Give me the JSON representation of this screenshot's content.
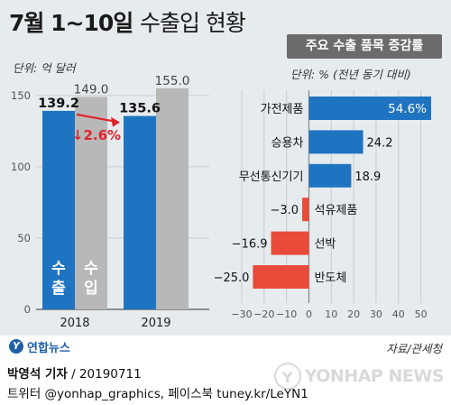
{
  "header": {
    "title_main": "7월 1~10일",
    "title_sub": "수출입 현황"
  },
  "left_chart": {
    "unit_label": "단위: 억 달러",
    "change_label": "↓2.6%",
    "export_label": "수출",
    "import_label": "수입"
  },
  "right_chart": {
    "header": "주요 수출 품목 증감률",
    "unit_label": "단위: % (전년 동기 대비)"
  },
  "footer": {
    "logo_text": "연합뉴스",
    "source": "자료/관세청",
    "byline_name": "박영석 기자",
    "byline_date": "20190711",
    "social": "트위터 @yonhap_graphics, 페이스북 tuney.kr/LeYN1",
    "watermark_text": "YONHAP NEWS"
  },
  "colors": {
    "export": "#1f74c1",
    "import": "#b8b8b8",
    "positive": "#1f74c1",
    "negative": "#e84b3a",
    "arrow": "#e0242b",
    "highlight_label": "#ffffff"
  },
  "chart_data": [
    {
      "type": "bar",
      "categories": [
        "2018",
        "2019"
      ],
      "series": [
        {
          "name": "수출",
          "values": [
            139.2,
            135.6
          ]
        },
        {
          "name": "수입",
          "values": [
            149.0,
            155.0
          ]
        }
      ],
      "ylabel": "단위: 억 달러",
      "ylim": [
        0,
        160
      ],
      "yticks": [
        0,
        50,
        100,
        150
      ],
      "grid": true,
      "annotations": [
        {
          "text": "↓2.6%",
          "from": "2018 수출",
          "to": "2019 수출"
        }
      ]
    },
    {
      "type": "bar",
      "orientation": "horizontal",
      "title": "주요 수출 품목 증감률",
      "categories": [
        "가전제품",
        "승용차",
        "무선통신기기",
        "석유제품",
        "선박",
        "반도체"
      ],
      "values": [
        54.6,
        24.2,
        18.9,
        -3.0,
        -16.9,
        -25.0
      ],
      "value_labels": [
        "54.6%",
        "24.2",
        "18.9",
        "-3.0",
        "-16.9",
        "-25.0"
      ],
      "xticks": [
        -30,
        -20,
        -10,
        0,
        10,
        20,
        30,
        40,
        50
      ],
      "xlim": [
        -30,
        55
      ],
      "xlabel": "단위: % (전년 동기 대비)",
      "grid": true
    }
  ]
}
